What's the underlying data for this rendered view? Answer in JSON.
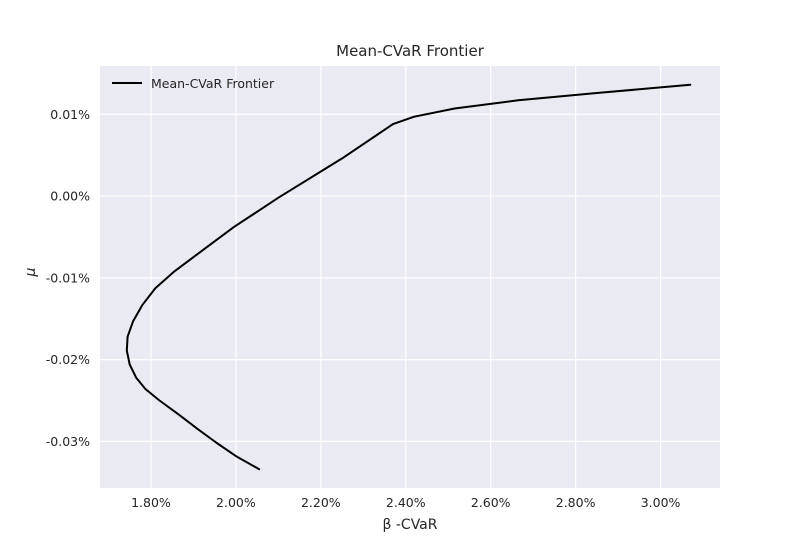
{
  "chart_data": {
    "type": "line",
    "title": "Mean-CVaR Frontier",
    "xlabel": "β -CVaR",
    "ylabel": "μ",
    "xlim": [
      1.68,
      3.14
    ],
    "ylim": [
      -0.0357,
      0.0159
    ],
    "x_ticks": [
      1.8,
      2.0,
      2.2,
      2.4,
      2.6,
      2.8,
      3.0
    ],
    "x_tick_labels": [
      "1.80%",
      "2.00%",
      "2.20%",
      "2.40%",
      "2.60%",
      "2.80%",
      "3.00%"
    ],
    "y_ticks": [
      0.01,
      0.0,
      -0.01,
      -0.02,
      -0.03
    ],
    "y_tick_labels": [
      "0.01%",
      "0.00%",
      "-0.01%",
      "-0.02%",
      "-0.03%"
    ],
    "grid": true,
    "legend_position": "top-left",
    "series": [
      {
        "name": "Mean-CVaR Frontier",
        "color": "#000000",
        "x": [
          2.055,
          2.0,
          1.955,
          1.91,
          1.865,
          1.82,
          1.787,
          1.765,
          1.75,
          1.743,
          1.745,
          1.758,
          1.78,
          1.81,
          1.853,
          1.92,
          1.995,
          2.1,
          2.25,
          2.37,
          2.42,
          2.515,
          2.665,
          2.85,
          3.07
        ],
        "y": [
          -0.0334,
          -0.0318,
          -0.0302,
          -0.0285,
          -0.0267,
          -0.025,
          -0.0236,
          -0.0222,
          -0.0206,
          -0.0189,
          -0.0172,
          -0.0153,
          -0.0133,
          -0.0113,
          -0.0093,
          -0.0067,
          -0.0038,
          -0.0002,
          0.0046,
          0.0088,
          0.0097,
          0.0107,
          0.0117,
          0.0126,
          0.0136
        ]
      }
    ]
  }
}
